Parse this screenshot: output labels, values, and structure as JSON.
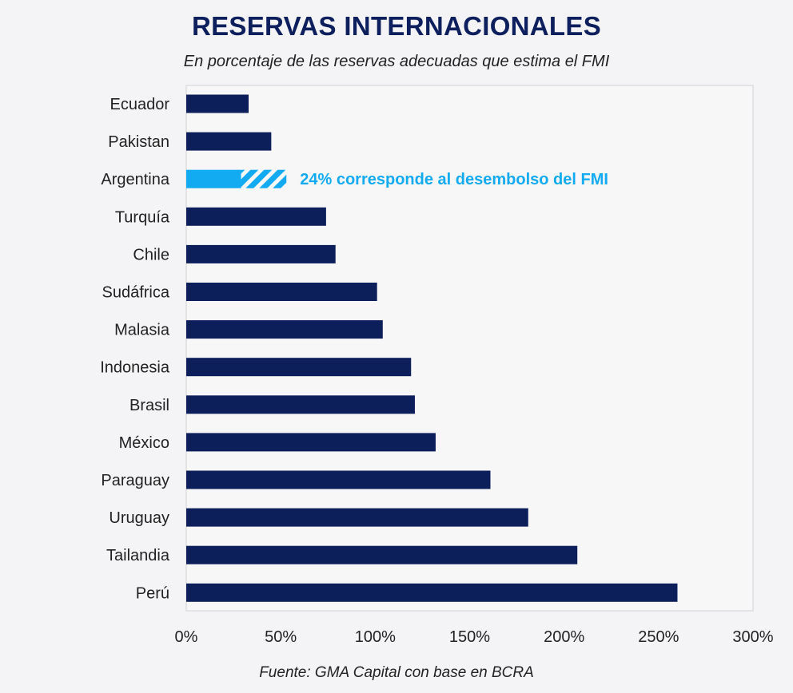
{
  "chart_data": {
    "type": "bar",
    "orientation": "horizontal",
    "title": "RESERVAS INTERNACIONALES",
    "subtitle": "En porcentaje de las reservas adecuadas que estima el FMI",
    "source": "Fuente: GMA Capital con base en BCRA",
    "categories": [
      "Ecuador",
      "Pakistan",
      "Argentina",
      "Turquía",
      "Chile",
      "Sudáfrica",
      "Malasia",
      "Indonesia",
      "Brasil",
      "México",
      "Paraguay",
      "Uruguay",
      "Tailandia",
      "Perú"
    ],
    "values": [
      33,
      45,
      53,
      74,
      79,
      101,
      104,
      119,
      121,
      132,
      161,
      181,
      207,
      260
    ],
    "highlight": {
      "category": "Argentina",
      "imf_disbursement_part": 24,
      "annotation": "24% corresponde al desembolso del FMI"
    },
    "xlim": [
      0,
      300
    ],
    "xticks": [
      0,
      50,
      100,
      150,
      200,
      250,
      300
    ],
    "xtick_labels": [
      "0%",
      "50%",
      "100%",
      "150%",
      "200%",
      "250%",
      "300%"
    ],
    "grid": false,
    "colors": {
      "bar": "#0c1f5a",
      "highlight": "#12aaf0"
    }
  }
}
